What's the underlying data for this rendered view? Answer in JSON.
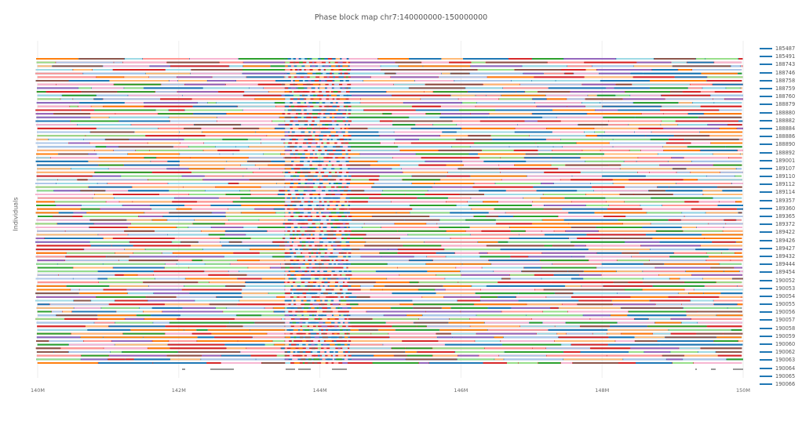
{
  "chart_data": {
    "type": "line",
    "title": "Phase block map chr7:140000000-150000000",
    "xlabel": "",
    "ylabel": "Individuals",
    "xlim": [
      140000000,
      150000000
    ],
    "x_ticks": [
      "140M",
      "142M",
      "144M",
      "146M",
      "148M",
      "150M"
    ],
    "x_tick_values": [
      140000000,
      142000000,
      144000000,
      146000000,
      148000000,
      150000000
    ],
    "grid": true,
    "legend_position": "right",
    "legend_line_color": "#1f77b4",
    "palette": [
      "#1f77b4",
      "#ffbb78",
      "#2ca02c",
      "#d62728",
      "#f7b6d2",
      "#9467bd",
      "#98df8a",
      "#aec7e8",
      "#8c564b",
      "#ff9896",
      "#9edae5",
      "#ff7f0e"
    ],
    "gap_region": [
      143500000,
      144400000
    ],
    "series": [
      {
        "name": "185487"
      },
      {
        "name": "185491"
      },
      {
        "name": "188743"
      },
      {
        "name": "188746"
      },
      {
        "name": "188758"
      },
      {
        "name": "188759"
      },
      {
        "name": "188760"
      },
      {
        "name": "188879"
      },
      {
        "name": "188880"
      },
      {
        "name": "188882"
      },
      {
        "name": "188884"
      },
      {
        "name": "188886"
      },
      {
        "name": "188890"
      },
      {
        "name": "188892"
      },
      {
        "name": "189001"
      },
      {
        "name": "189107"
      },
      {
        "name": "189110"
      },
      {
        "name": "189112"
      },
      {
        "name": "189114"
      },
      {
        "name": "189357"
      },
      {
        "name": "189360"
      },
      {
        "name": "189365"
      },
      {
        "name": "189372"
      },
      {
        "name": "189422"
      },
      {
        "name": "189426"
      },
      {
        "name": "189427"
      },
      {
        "name": "189432"
      },
      {
        "name": "189444"
      },
      {
        "name": "189454"
      },
      {
        "name": "190052"
      },
      {
        "name": "190053"
      },
      {
        "name": "190054"
      },
      {
        "name": "190055"
      },
      {
        "name": "190056"
      },
      {
        "name": "190057"
      },
      {
        "name": "190058"
      },
      {
        "name": "190059"
      },
      {
        "name": "190060"
      },
      {
        "name": "190062"
      },
      {
        "name": "190063"
      },
      {
        "name": "190064"
      },
      {
        "name": "190065"
      },
      {
        "name": "190066"
      }
    ]
  }
}
